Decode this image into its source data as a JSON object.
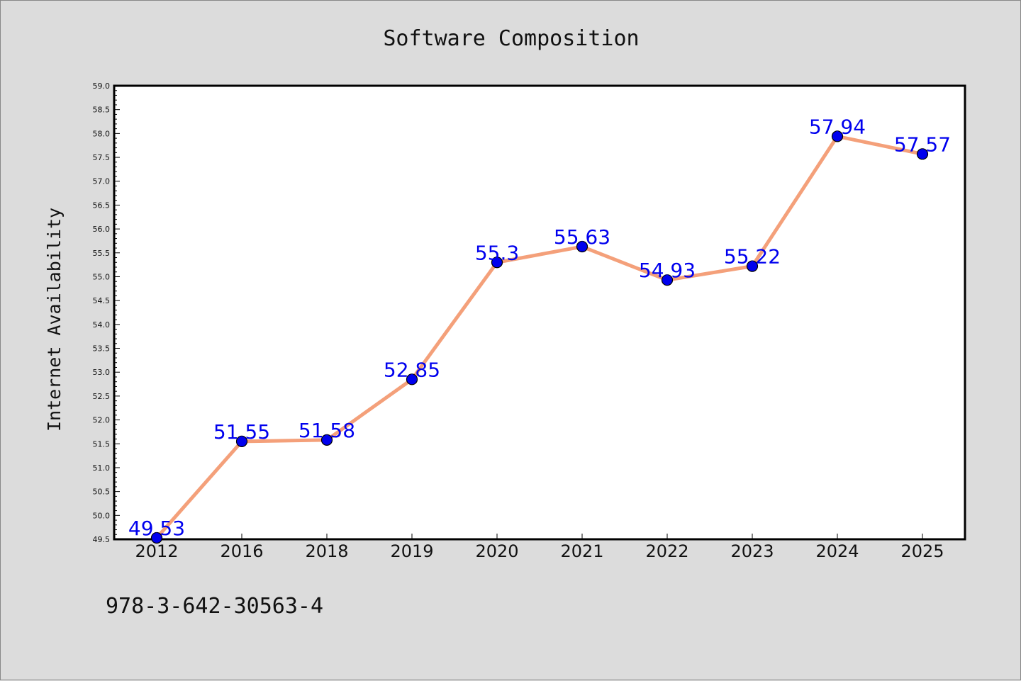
{
  "chart_data": {
    "type": "line",
    "title": "Software Composition",
    "xlabel": "",
    "ylabel": "Internet Availability",
    "categories": [
      "2012",
      "2016",
      "2018",
      "2019",
      "2020",
      "2021",
      "2022",
      "2023",
      "2024",
      "2025"
    ],
    "series": [
      {
        "values": [
          49.53,
          51.55,
          51.58,
          52.85,
          55.3,
          55.63,
          54.93,
          55.22,
          57.94,
          57.57
        ],
        "data_labels": [
          "49.53",
          "51.55",
          "51.58",
          "52.85",
          "55.3",
          "55.63",
          "54.93",
          "55.22",
          "57.94",
          "57.57"
        ]
      }
    ],
    "ylim": [
      49.5,
      59.0
    ],
    "yticks": [
      "49.5",
      "50.0",
      "50.5",
      "51.0",
      "51.5",
      "52.0",
      "52.5",
      "53.0",
      "53.5",
      "54.0",
      "54.5",
      "55.0",
      "55.5",
      "56.0",
      "56.5",
      "57.0",
      "57.5",
      "58.0",
      "58.5",
      "59.0"
    ],
    "grid": false,
    "legend": "none",
    "colors": {
      "line": "#f4a07a",
      "marker": "#0000ee",
      "label": "#0000ee",
      "background": "#dcdcdc",
      "plot_background": "#ffffff"
    }
  },
  "footer_text": "978-3-642-30563-4"
}
